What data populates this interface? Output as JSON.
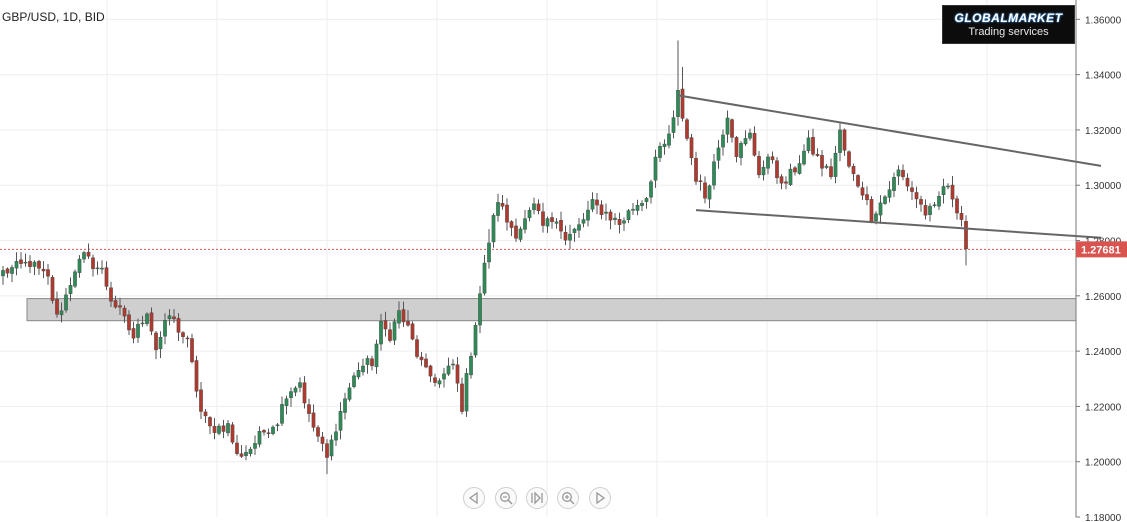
{
  "header": {
    "symbol": "GBP/USD, 1D, BID"
  },
  "logo": {
    "brand": "GLOBALMARKET",
    "tagline": "Trading services"
  },
  "price_axis": {
    "tick_labels": [
      "1.36000",
      "1.34000",
      "1.32000",
      "1.30000",
      "1.28000",
      "1.26000",
      "1.24000",
      "1.22000",
      "1.20000",
      "1.18000"
    ],
    "current_price_label": "1.27681"
  },
  "nav_buttons": [
    {
      "name": "scroll-left-icon"
    },
    {
      "name": "zoom-out-icon"
    },
    {
      "name": "reset-view-icon"
    },
    {
      "name": "zoom-in-icon"
    },
    {
      "name": "scroll-right-icon"
    }
  ],
  "colors": {
    "up": "#2e8b57",
    "down": "#b03a2e",
    "wick": "#555555",
    "zone": "#cfcfcf",
    "trendline": "#666666",
    "price_tag": "#d9534f",
    "grid": "#eeeeee"
  },
  "chart_data": {
    "type": "candlestick",
    "title": "GBP/USD, 1D, BID",
    "ylim": [
      1.18,
      1.367
    ],
    "y_ticks": [
      1.2,
      1.22,
      1.24,
      1.26,
      1.28,
      1.3,
      1.32,
      1.34,
      1.36
    ],
    "current_price": 1.27681,
    "grid": true,
    "zone": {
      "low": 1.251,
      "high": 1.259
    },
    "trendlines": [
      {
        "from": {
          "bar": 150,
          "price": 1.3325
        },
        "to": {
          "bar": 244,
          "price": 1.307
        }
      },
      {
        "from": {
          "bar": 154,
          "price": 1.291
        },
        "to": {
          "bar": 244,
          "price": 1.281
        }
      }
    ],
    "close_anchors": [
      [
        0,
        1.2685
      ],
      [
        6,
        1.272
      ],
      [
        10,
        1.266
      ],
      [
        12,
        1.252
      ],
      [
        14,
        1.26
      ],
      [
        16,
        1.27
      ],
      [
        18,
        1.274
      ],
      [
        22,
        1.269
      ],
      [
        24,
        1.259
      ],
      [
        26,
        1.254
      ],
      [
        29,
        1.245
      ],
      [
        32,
        1.255
      ],
      [
        34,
        1.241
      ],
      [
        37,
        1.253
      ],
      [
        39,
        1.248
      ],
      [
        41,
        1.243
      ],
      [
        44,
        1.218
      ],
      [
        46,
        1.212
      ],
      [
        50,
        1.213
      ],
      [
        52,
        1.202
      ],
      [
        55,
        1.205
      ],
      [
        58,
        1.211
      ],
      [
        61,
        1.215
      ],
      [
        63,
        1.225
      ],
      [
        66,
        1.229
      ],
      [
        68,
        1.216
      ],
      [
        70,
        1.209
      ],
      [
        72,
        1.201
      ],
      [
        74,
        1.213
      ],
      [
        76,
        1.223
      ],
      [
        79,
        1.234
      ],
      [
        82,
        1.236
      ],
      [
        84,
        1.249
      ],
      [
        86,
        1.246
      ],
      [
        88,
        1.254
      ],
      [
        90,
        1.248
      ],
      [
        92,
        1.239
      ],
      [
        94,
        1.232
      ],
      [
        97,
        1.229
      ],
      [
        100,
        1.235
      ],
      [
        102,
        1.22
      ],
      [
        104,
        1.24
      ],
      [
        106,
        1.261
      ],
      [
        108,
        1.28
      ],
      [
        110,
        1.295
      ],
      [
        112,
        1.287
      ],
      [
        114,
        1.283
      ],
      [
        116,
        1.287
      ],
      [
        118,
        1.292
      ],
      [
        120,
        1.285
      ],
      [
        123,
        1.289
      ],
      [
        125,
        1.28
      ],
      [
        128,
        1.285
      ],
      [
        131,
        1.293
      ],
      [
        134,
        1.29
      ],
      [
        137,
        1.286
      ],
      [
        140,
        1.292
      ],
      [
        143,
        1.296
      ],
      [
        145,
        1.31
      ],
      [
        147,
        1.314
      ],
      [
        149,
        1.323
      ],
      [
        150,
        1.333
      ],
      [
        152,
        1.317
      ],
      [
        154,
        1.303
      ],
      [
        156,
        1.296
      ],
      [
        159,
        1.314
      ],
      [
        161,
        1.326
      ],
      [
        163,
        1.312
      ],
      [
        166,
        1.318
      ],
      [
        168,
        1.305
      ],
      [
        171,
        1.31
      ],
      [
        173,
        1.299
      ],
      [
        176,
        1.306
      ],
      [
        179,
        1.315
      ],
      [
        182,
        1.307
      ],
      [
        184,
        1.304
      ],
      [
        186,
        1.319
      ],
      [
        188,
        1.306
      ],
      [
        191,
        1.298
      ],
      [
        193,
        1.289
      ],
      [
        196,
        1.296
      ],
      [
        199,
        1.305
      ],
      [
        202,
        1.298
      ],
      [
        205,
        1.29
      ],
      [
        207,
        1.291
      ],
      [
        209,
        1.3
      ],
      [
        211,
        1.296
      ],
      [
        213,
        1.288
      ],
      [
        214,
        1.277
      ]
    ],
    "bars": 215
  }
}
